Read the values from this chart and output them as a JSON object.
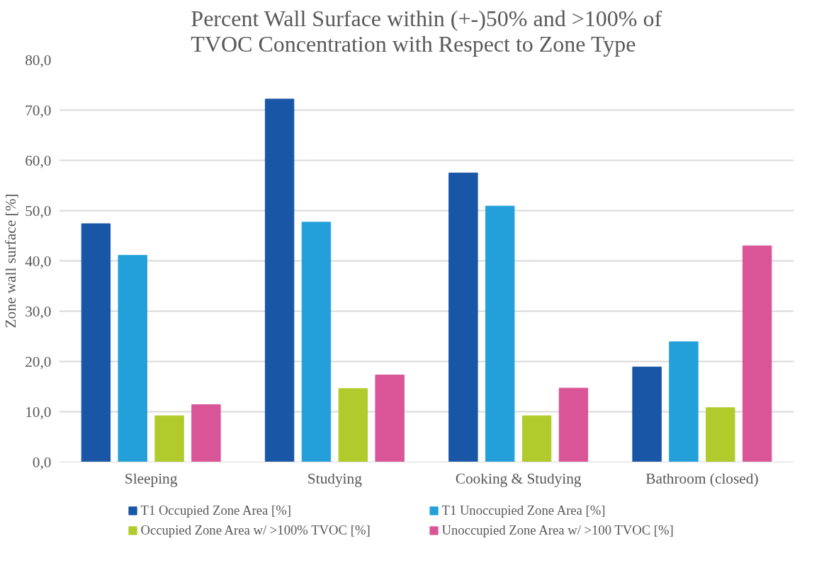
{
  "chart_data": {
    "type": "bar",
    "title": "Percent Wall Surface within (+-)50% and >100% of\nTVOC Concentration with Respect to Zone Type",
    "ylabel": "Zone wall surface [%]",
    "categories": [
      "Sleeping",
      "Studying",
      "Cooking & Studying",
      "Bathroom (closed)"
    ],
    "series": [
      {
        "name": "T1 Occupied Zone Area [%]",
        "color": "#1a56a6",
        "values": [
          47.4,
          72.2,
          57.5,
          18.9
        ]
      },
      {
        "name": "T1 Unoccupied Zone Area [%]",
        "color": "#23a0da",
        "values": [
          41.1,
          47.7,
          50.9,
          23.9
        ]
      },
      {
        "name": "Occupied Zone Area w/ >100% TVOC [%]",
        "color": "#b2cb2c",
        "values": [
          9.2,
          14.6,
          9.2,
          10.8
        ]
      },
      {
        "name": "Unoccupied Zone Area w/ >100 TVOC [%]",
        "color": "#da5597",
        "values": [
          11.4,
          17.3,
          14.7,
          43.0
        ]
      }
    ],
    "ylim": [
      0,
      80
    ],
    "yticks": [
      {
        "value": 0,
        "label": "0,0"
      },
      {
        "value": 10,
        "label": "10,0"
      },
      {
        "value": 20,
        "label": "20,0"
      },
      {
        "value": 30,
        "label": "30,0"
      },
      {
        "value": 40,
        "label": "40,0"
      },
      {
        "value": 50,
        "label": "50,0"
      },
      {
        "value": 60,
        "label": "60,0"
      },
      {
        "value": 70,
        "label": "70,0"
      },
      {
        "value": 80,
        "label": "80,0"
      }
    ],
    "grid": "y",
    "legend": "bottom"
  }
}
